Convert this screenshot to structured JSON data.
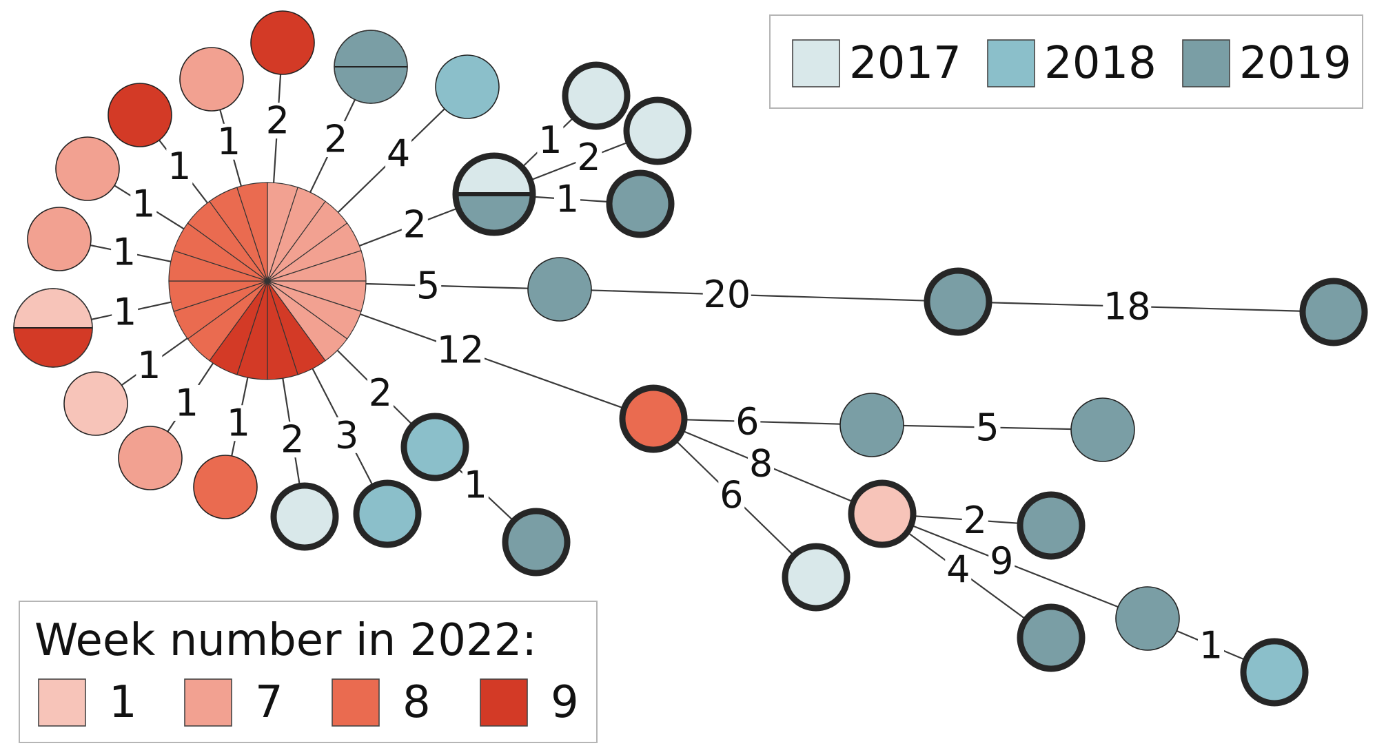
{
  "colors": {
    "y2017": "#d9e8ea",
    "y2018": "#8bbfca",
    "y2019": "#7a9ea5",
    "w1": "#f7c4b9",
    "w7": "#f2a191",
    "w8": "#ea6b50",
    "w9": "#d33a26"
  },
  "legend_years": {
    "items": [
      {
        "key": "y2017",
        "label": "2017"
      },
      {
        "key": "y2018",
        "label": "2018"
      },
      {
        "key": "y2019",
        "label": "2019"
      }
    ]
  },
  "legend_weeks": {
    "title": "Week number in 2022:",
    "items": [
      {
        "key": "w1",
        "label": "1"
      },
      {
        "key": "w7",
        "label": "7"
      },
      {
        "key": "w8",
        "label": "8"
      },
      {
        "key": "w9",
        "label": "9"
      }
    ]
  },
  "central_node": {
    "slices": [
      "w7",
      "w7",
      "w7",
      "w7",
      "w7",
      "w7",
      "w7",
      "w7",
      "w9",
      "w9",
      "w9",
      "w9",
      "w8",
      "w8",
      "w8",
      "w8",
      "w8",
      "w8",
      "w8",
      "w8"
    ]
  },
  "nodes": [
    {
      "id": "a1",
      "fill": [
        "w9"
      ],
      "thick": false
    },
    {
      "id": "a2",
      "fill": [
        "w7"
      ],
      "thick": false
    },
    {
      "id": "a3",
      "fill": [
        "y2019",
        "y2019"
      ],
      "thick": false
    },
    {
      "id": "a4",
      "fill": [
        "y2018"
      ],
      "thick": false
    },
    {
      "id": "a5",
      "fill": [
        "w9"
      ],
      "thick": false
    },
    {
      "id": "a6",
      "fill": [
        "w7"
      ],
      "thick": false
    },
    {
      "id": "a7",
      "fill": [
        "w7"
      ],
      "thick": false
    },
    {
      "id": "a8",
      "fill": [
        "w1",
        "w9"
      ],
      "thick": false
    },
    {
      "id": "a9",
      "fill": [
        "w1"
      ],
      "thick": false
    },
    {
      "id": "a10",
      "fill": [
        "w7"
      ],
      "thick": false
    },
    {
      "id": "a11",
      "fill": [
        "w8"
      ],
      "thick": false
    },
    {
      "id": "a12",
      "fill": [
        "y2017"
      ],
      "thick": true
    },
    {
      "id": "a13",
      "fill": [
        "y2018"
      ],
      "thick": true
    },
    {
      "id": "a14",
      "fill": [
        "y2018"
      ],
      "thick": true
    },
    {
      "id": "a15",
      "fill": [
        "y2019"
      ],
      "thick": true
    },
    {
      "id": "b0",
      "fill": [
        "y2017",
        "y2019"
      ],
      "thick": true
    },
    {
      "id": "b1",
      "fill": [
        "y2017"
      ],
      "thick": true
    },
    {
      "id": "b2",
      "fill": [
        "y2017"
      ],
      "thick": true
    },
    {
      "id": "b3",
      "fill": [
        "y2019"
      ],
      "thick": true
    },
    {
      "id": "c1",
      "fill": [
        "y2019"
      ],
      "thick": false
    },
    {
      "id": "c2",
      "fill": [
        "y2019"
      ],
      "thick": true
    },
    {
      "id": "c3",
      "fill": [
        "y2019"
      ],
      "thick": true
    },
    {
      "id": "d0",
      "fill": [
        "w8"
      ],
      "thick": true
    },
    {
      "id": "d1",
      "fill": [
        "y2019"
      ],
      "thick": false
    },
    {
      "id": "d2",
      "fill": [
        "y2019"
      ],
      "thick": false
    },
    {
      "id": "e0",
      "fill": [
        "w1"
      ],
      "thick": true
    },
    {
      "id": "d3",
      "fill": [
        "y2017"
      ],
      "thick": true
    },
    {
      "id": "e1",
      "fill": [
        "y2019"
      ],
      "thick": true
    },
    {
      "id": "e2",
      "fill": [
        "y2019"
      ],
      "thick": true
    },
    {
      "id": "e3",
      "fill": [
        "y2019"
      ],
      "thick": false
    },
    {
      "id": "e4",
      "fill": [
        "y2018"
      ],
      "thick": true
    }
  ],
  "edges": [
    {
      "from": "center",
      "to": "a1",
      "label": "1"
    },
    {
      "from": "center",
      "to": "a2",
      "label": "1"
    },
    {
      "from": "center",
      "to": "a5",
      "label": "2"
    },
    {
      "from": "center",
      "to": "a3",
      "label": "2"
    },
    {
      "from": "center",
      "to": "a4",
      "label": "4"
    },
    {
      "from": "center",
      "to": "a6",
      "label": "1"
    },
    {
      "from": "center",
      "to": "a7",
      "label": "1"
    },
    {
      "from": "center",
      "to": "a8",
      "label": "1"
    },
    {
      "from": "center",
      "to": "a9",
      "label": "1"
    },
    {
      "from": "center",
      "to": "a10",
      "label": "1"
    },
    {
      "from": "center",
      "to": "a11",
      "label": "1"
    },
    {
      "from": "center",
      "to": "a12",
      "label": "2"
    },
    {
      "from": "center",
      "to": "a13",
      "label": "3"
    },
    {
      "from": "center",
      "to": "a14",
      "label": "2"
    },
    {
      "from": "a14",
      "to": "a15",
      "label": "1"
    },
    {
      "from": "center",
      "to": "b0",
      "label": "2"
    },
    {
      "from": "b0",
      "to": "b1",
      "label": "1"
    },
    {
      "from": "b0",
      "to": "b2",
      "label": "2"
    },
    {
      "from": "b0",
      "to": "b3",
      "label": "1"
    },
    {
      "from": "center",
      "to": "c1",
      "label": "5"
    },
    {
      "from": "c1",
      "to": "c2",
      "label": "20"
    },
    {
      "from": "c2",
      "to": "c3",
      "label": "18"
    },
    {
      "from": "center",
      "to": "d0",
      "label": "12"
    },
    {
      "from": "d0",
      "to": "d1",
      "label": "6"
    },
    {
      "from": "d1",
      "to": "d2",
      "label": "5"
    },
    {
      "from": "d0",
      "to": "e0",
      "label": "8"
    },
    {
      "from": "d0",
      "to": "d3",
      "label": "6"
    },
    {
      "from": "e0",
      "to": "e1",
      "label": "2"
    },
    {
      "from": "e0",
      "to": "e2",
      "label": "4"
    },
    {
      "from": "e0",
      "to": "e3",
      "label": "9"
    },
    {
      "from": "e3",
      "to": "e4",
      "label": "1"
    }
  ]
}
